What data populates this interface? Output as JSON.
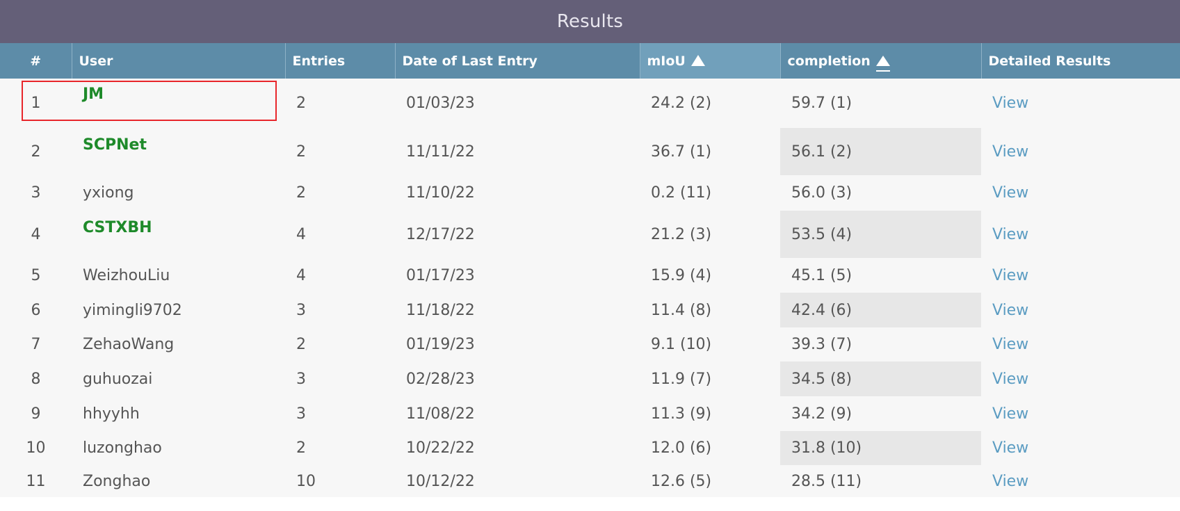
{
  "title": "Results",
  "columns": {
    "rank": "#",
    "user": "User",
    "entries": "Entries",
    "date": "Date of Last Entry",
    "miou": "mIoU",
    "completion": "completion",
    "details": "Detailed Results"
  },
  "rows": [
    {
      "rank": "1",
      "user": "JM",
      "entries": "2",
      "date": "01/03/23",
      "miou": "24.2 (2)",
      "completion": "59.7 (1)",
      "view": "View"
    },
    {
      "rank": "2",
      "user": "SCPNet",
      "entries": "2",
      "date": "11/11/22",
      "miou": "36.7 (1)",
      "completion": "56.1 (2)",
      "view": "View"
    },
    {
      "rank": "3",
      "user": "yxiong",
      "entries": "2",
      "date": "11/10/22",
      "miou": "0.2 (11)",
      "completion": "56.0 (3)",
      "view": "View"
    },
    {
      "rank": "4",
      "user": "CSTXBH",
      "entries": "4",
      "date": "12/17/22",
      "miou": "21.2 (3)",
      "completion": "53.5 (4)",
      "view": "View"
    },
    {
      "rank": "5",
      "user": "WeizhouLiu",
      "entries": "4",
      "date": "01/17/23",
      "miou": "15.9 (4)",
      "completion": "45.1 (5)",
      "view": "View"
    },
    {
      "rank": "6",
      "user": "yimingli9702",
      "entries": "3",
      "date": "11/18/22",
      "miou": "11.4 (8)",
      "completion": "42.4 (6)",
      "view": "View"
    },
    {
      "rank": "7",
      "user": "ZehaoWang",
      "entries": "2",
      "date": "01/19/23",
      "miou": "9.1 (10)",
      "completion": "39.3 (7)",
      "view": "View"
    },
    {
      "rank": "8",
      "user": "guhuozai",
      "entries": "3",
      "date": "02/28/23",
      "miou": "11.9 (7)",
      "completion": "34.5 (8)",
      "view": "View"
    },
    {
      "rank": "9",
      "user": "hhyyhh",
      "entries": "3",
      "date": "11/08/22",
      "miou": "11.3 (9)",
      "completion": "34.2 (9)",
      "view": "View"
    },
    {
      "rank": "10",
      "user": "luzonghao",
      "entries": "2",
      "date": "10/22/22",
      "miou": "12.0 (6)",
      "completion": "31.8 (10)",
      "view": "View"
    },
    {
      "rank": "11",
      "user": "Zonghao",
      "entries": "10",
      "date": "10/12/22",
      "miou": "12.6 (5)",
      "completion": "28.5 (11)",
      "view": "View"
    }
  ],
  "icons": {
    "sort": "sort-ascending-icon"
  },
  "colors": {
    "title_bar": "#645f78",
    "header": "#5d8ca8",
    "highlight_user": "#1e8a2a",
    "view_link": "#5b9cc2",
    "selection": "#e8262b"
  }
}
